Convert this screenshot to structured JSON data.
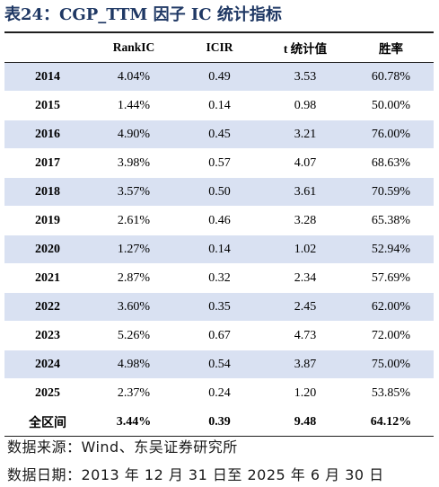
{
  "caption": "表24：CGP_TTM 因子 IC 统计指标",
  "table": {
    "headers": [
      "",
      "RankIC",
      "ICIR",
      "t 统计值",
      "胜率"
    ],
    "rows": [
      {
        "year": "2014",
        "rank_ic": "4.04%",
        "icir": "0.49",
        "t_stat": "3.53",
        "win_rate": "60.78%"
      },
      {
        "year": "2015",
        "rank_ic": "1.44%",
        "icir": "0.14",
        "t_stat": "0.98",
        "win_rate": "50.00%"
      },
      {
        "year": "2016",
        "rank_ic": "4.90%",
        "icir": "0.45",
        "t_stat": "3.21",
        "win_rate": "76.00%"
      },
      {
        "year": "2017",
        "rank_ic": "3.98%",
        "icir": "0.57",
        "t_stat": "4.07",
        "win_rate": "68.63%"
      },
      {
        "year": "2018",
        "rank_ic": "3.57%",
        "icir": "0.50",
        "t_stat": "3.61",
        "win_rate": "70.59%"
      },
      {
        "year": "2019",
        "rank_ic": "2.61%",
        "icir": "0.46",
        "t_stat": "3.28",
        "win_rate": "65.38%"
      },
      {
        "year": "2020",
        "rank_ic": "1.27%",
        "icir": "0.14",
        "t_stat": "1.02",
        "win_rate": "52.94%"
      },
      {
        "year": "2021",
        "rank_ic": "2.87%",
        "icir": "0.32",
        "t_stat": "2.34",
        "win_rate": "57.69%"
      },
      {
        "year": "2022",
        "rank_ic": "3.60%",
        "icir": "0.35",
        "t_stat": "2.45",
        "win_rate": "62.00%"
      },
      {
        "year": "2023",
        "rank_ic": "5.26%",
        "icir": "0.67",
        "t_stat": "4.73",
        "win_rate": "72.00%"
      },
      {
        "year": "2024",
        "rank_ic": "4.98%",
        "icir": "0.54",
        "t_stat": "3.87",
        "win_rate": "75.00%"
      },
      {
        "year": "2025",
        "rank_ic": "2.37%",
        "icir": "0.24",
        "t_stat": "1.20",
        "win_rate": "53.85%"
      }
    ],
    "total": {
      "year": "全区间",
      "rank_ic": "3.44%",
      "icir": "0.39",
      "t_stat": "9.48",
      "win_rate": "64.12%"
    }
  },
  "notes": {
    "source": "数据来源：Wind、东吴证券研究所",
    "date_range": "数据日期：2013 年 12 月 31 日至 2025 年 6 月 30 日"
  },
  "colors": {
    "caption": "#1f3864",
    "shaded_row": "#d9e1f2",
    "rule": "#1f1f1f"
  }
}
